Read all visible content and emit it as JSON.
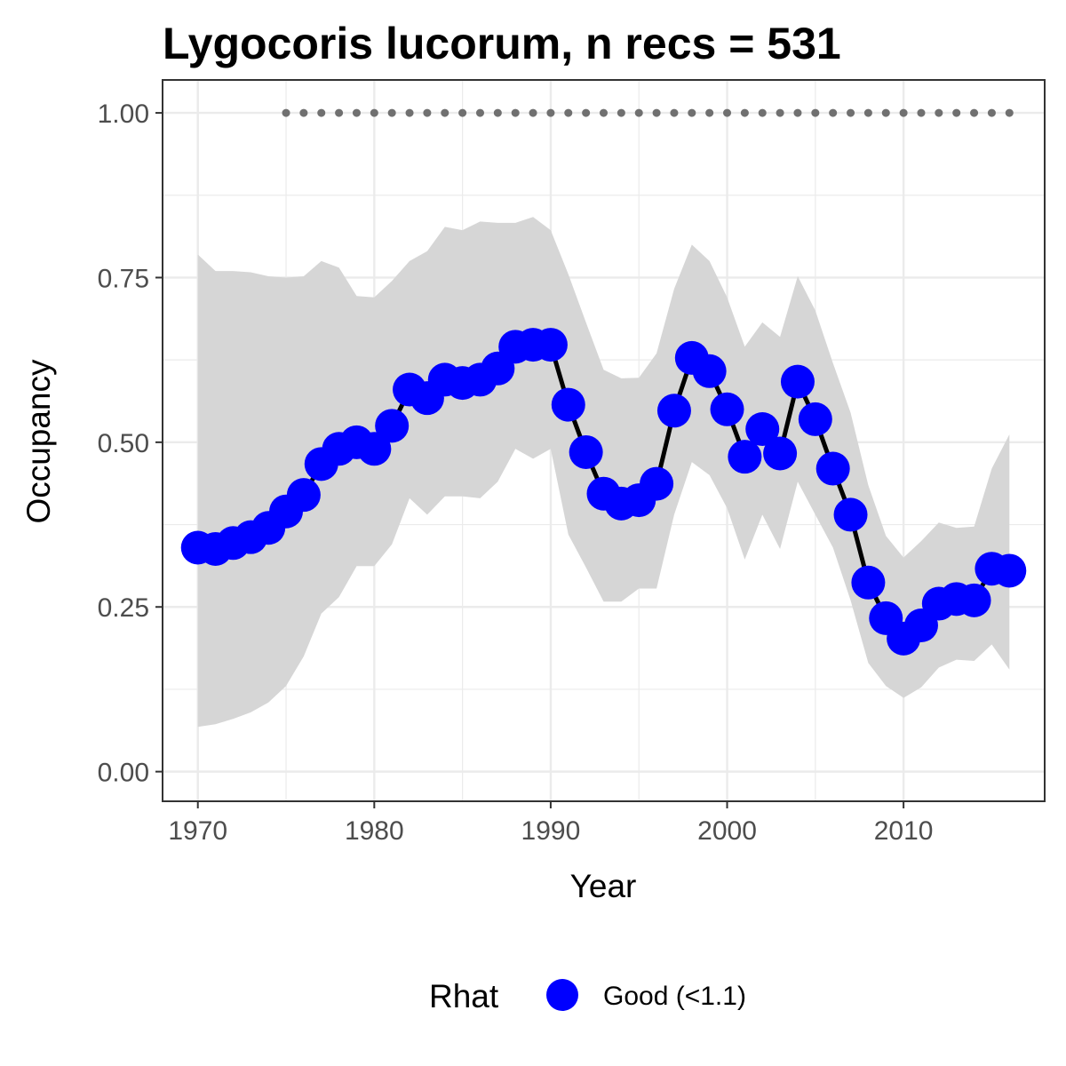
{
  "chart_data": {
    "type": "line",
    "title": "Lygocoris lucorum, n recs = 531",
    "xlabel": "Year",
    "ylabel": "Occupancy",
    "xlim": [
      1968,
      2018
    ],
    "ylim": [
      -0.045,
      1.05
    ],
    "x_ticks": [
      1970,
      1980,
      1990,
      2000,
      2010
    ],
    "x_tick_labels": [
      "1970",
      "1980",
      "1990",
      "2000",
      "2010"
    ],
    "y_ticks": [
      0,
      0.25,
      0.5,
      0.75,
      1.0
    ],
    "y_tick_labels": [
      "0.00",
      "0.25",
      "0.50",
      "0.75",
      "1.00"
    ],
    "grid": true,
    "legend": {
      "title": "Rhat",
      "position": "bottom",
      "label": "Good (<1.1)"
    },
    "colors": {
      "point": "#0000ff",
      "line": "#000000",
      "ribbon": "#d6d6d6",
      "dots": "#707070",
      "grid": "#ebebeb",
      "border": "#333333"
    },
    "series": [
      {
        "x": [
          1970,
          1971,
          1972,
          1973,
          1974,
          1975,
          1976,
          1977,
          1978,
          1979,
          1980,
          1981,
          1982,
          1983,
          1984,
          1985,
          1986,
          1987,
          1988,
          1989,
          1990,
          1991,
          1992,
          1993,
          1994,
          1995,
          1996,
          1997,
          1998,
          1999,
          2000,
          2001,
          2002,
          2003,
          2004,
          2005,
          2006,
          2007,
          2008,
          2009,
          2010,
          2011,
          2012,
          2013,
          2014,
          2015,
          2016
        ],
        "values": [
          0.34,
          0.338,
          0.347,
          0.356,
          0.37,
          0.395,
          0.42,
          0.467,
          0.49,
          0.5,
          0.49,
          0.525,
          0.58,
          0.567,
          0.595,
          0.59,
          0.595,
          0.612,
          0.645,
          0.648,
          0.648,
          0.557,
          0.485,
          0.422,
          0.407,
          0.412,
          0.437,
          0.548,
          0.628,
          0.608,
          0.55,
          0.478,
          0.52,
          0.483,
          0.592,
          0.535,
          0.46,
          0.39,
          0.287,
          0.233,
          0.202,
          0.222,
          0.255,
          0.262,
          0.26,
          0.308,
          0.305
        ],
        "lower": [
          0.068,
          0.072,
          0.08,
          0.09,
          0.105,
          0.13,
          0.175,
          0.24,
          0.265,
          0.312,
          0.312,
          0.345,
          0.415,
          0.39,
          0.418,
          0.418,
          0.415,
          0.44,
          0.49,
          0.475,
          0.49,
          0.36,
          0.31,
          0.258,
          0.258,
          0.278,
          0.278,
          0.39,
          0.47,
          0.45,
          0.4,
          0.322,
          0.39,
          0.338,
          0.44,
          0.39,
          0.34,
          0.26,
          0.165,
          0.13,
          0.112,
          0.128,
          0.158,
          0.17,
          0.168,
          0.193,
          0.155
        ],
        "upper": [
          0.785,
          0.76,
          0.76,
          0.758,
          0.752,
          0.75,
          0.752,
          0.775,
          0.765,
          0.722,
          0.72,
          0.745,
          0.775,
          0.79,
          0.827,
          0.822,
          0.835,
          0.833,
          0.833,
          0.842,
          0.822,
          0.755,
          0.682,
          0.61,
          0.597,
          0.598,
          0.635,
          0.733,
          0.8,
          0.775,
          0.72,
          0.645,
          0.682,
          0.66,
          0.752,
          0.7,
          0.62,
          0.545,
          0.435,
          0.358,
          0.325,
          0.35,
          0.378,
          0.37,
          0.372,
          0.46,
          0.512
        ]
      }
    ],
    "dotted_line": {
      "x": [
        1975,
        1976,
        1977,
        1978,
        1979,
        1980,
        1981,
        1982,
        1983,
        1984,
        1985,
        1986,
        1987,
        1988,
        1989,
        1990,
        1991,
        1992,
        1993,
        1994,
        1995,
        1996,
        1997,
        1998,
        1999,
        2000,
        2001,
        2002,
        2003,
        2004,
        2005,
        2006,
        2007,
        2008,
        2009,
        2010,
        2011,
        2012,
        2013,
        2014,
        2015,
        2016
      ],
      "y": 1.0
    }
  }
}
